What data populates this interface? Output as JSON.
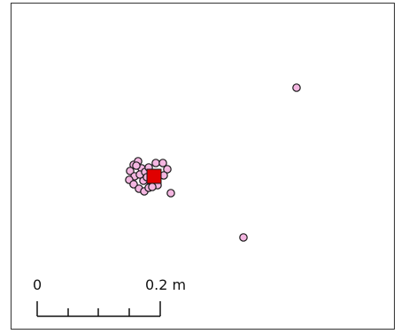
{
  "map": {
    "feature_fill": "#f4b6e1",
    "feature_stroke": "#1a1a1a",
    "highlight_fill": "#e00000",
    "highlight_stroke": "#1a1a1a",
    "frame_color": "#333333"
  },
  "scale_bar": {
    "start_label": "0",
    "end_label": "0.2 m"
  }
}
